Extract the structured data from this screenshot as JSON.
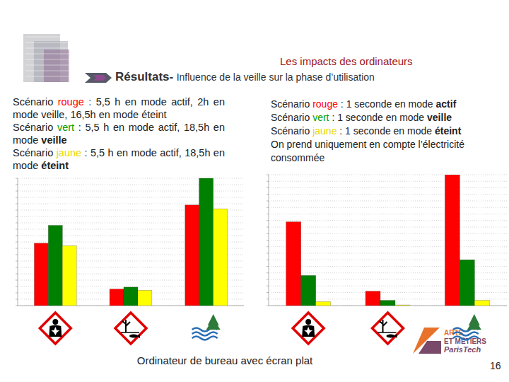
{
  "slide": {
    "header": "Les impacts des ordinateurs",
    "title": "Résultats-",
    "subtitle": "Influence de la veille sur la phase d’utilisation",
    "left_text": [
      [
        {
          "text": "Scénario "
        },
        {
          "text": "rouge",
          "color": "#ff0000"
        },
        {
          "text": " : 5,5 h en mode actif, 2h en mode veille, 16,5h en mode éteint"
        }
      ],
      [
        {
          "text": "Scénario "
        },
        {
          "text": "vert",
          "color": "#00a000"
        },
        {
          "text": " : 5,5 h en mode actif, 18,5h en mode "
        },
        {
          "text": "veille",
          "bold": true
        }
      ],
      [
        {
          "text": "Scénario "
        },
        {
          "text": "jaune",
          "color": "#e8d800"
        },
        {
          "text": " : 5,5 h en mode actif, 18,5h en mode "
        },
        {
          "text": "éteint",
          "bold": true
        }
      ]
    ],
    "right_text": [
      [
        {
          "text": "Scénario "
        },
        {
          "text": "rouge",
          "color": "#ff0000"
        },
        {
          "text": " : 1 seconde en mode "
        },
        {
          "text": "actif",
          "bold": true
        }
      ],
      [
        {
          "text": "Scénario "
        },
        {
          "text": "vert",
          "color": "#00a000"
        },
        {
          "text": " : 1 seconde en mode "
        },
        {
          "text": "veille",
          "bold": true
        }
      ],
      [
        {
          "text": "Scénario "
        },
        {
          "text": "jaune",
          "color": "#e8d800"
        },
        {
          "text": " : 1 seconde en mode "
        },
        {
          "text": "éteint",
          "bold": true
        }
      ],
      [
        {
          "text": "On prend uniquement en compte l’électricité consommée"
        }
      ]
    ],
    "caption": "Ordinateur de bureau avec écran plat",
    "logo": [
      "ARTS",
      "ET MÉTIERS",
      "ParisTech"
    ],
    "page": "16"
  },
  "chart_data": [
    {
      "type": "bar",
      "categories": [
        null,
        null,
        null
      ],
      "series": [
        {
          "color": "#ff0000",
          "values": [
            49,
            13,
            79
          ]
        },
        {
          "color": "#008000",
          "values": [
            63,
            14.5,
            100
          ]
        },
        {
          "color": "#ffff00",
          "values": [
            47,
            12,
            76
          ]
        }
      ],
      "ylim": [
        0,
        100
      ],
      "yticks": [
        0,
        5,
        10,
        15,
        20,
        25,
        30,
        35,
        40,
        45,
        50,
        55,
        60,
        65,
        70,
        75,
        80,
        85,
        90,
        95,
        100
      ],
      "grid": true,
      "tick_labels": false
    },
    {
      "type": "bar",
      "categories": [
        null,
        null,
        null
      ],
      "series": [
        {
          "color": "#ff0000",
          "values": [
            64,
            11,
            100
          ]
        },
        {
          "color": "#008000",
          "values": [
            23,
            4,
            35
          ]
        },
        {
          "color": "#ffff00",
          "values": [
            3,
            0.5,
            4
          ]
        }
      ],
      "ylim": [
        0,
        100
      ],
      "yticks": [
        0,
        5,
        10,
        15,
        20,
        25,
        30,
        35,
        40,
        45,
        50,
        55,
        60,
        65,
        70,
        75,
        80,
        85,
        90,
        95,
        100
      ],
      "grid": true,
      "tick_labels": false
    }
  ]
}
